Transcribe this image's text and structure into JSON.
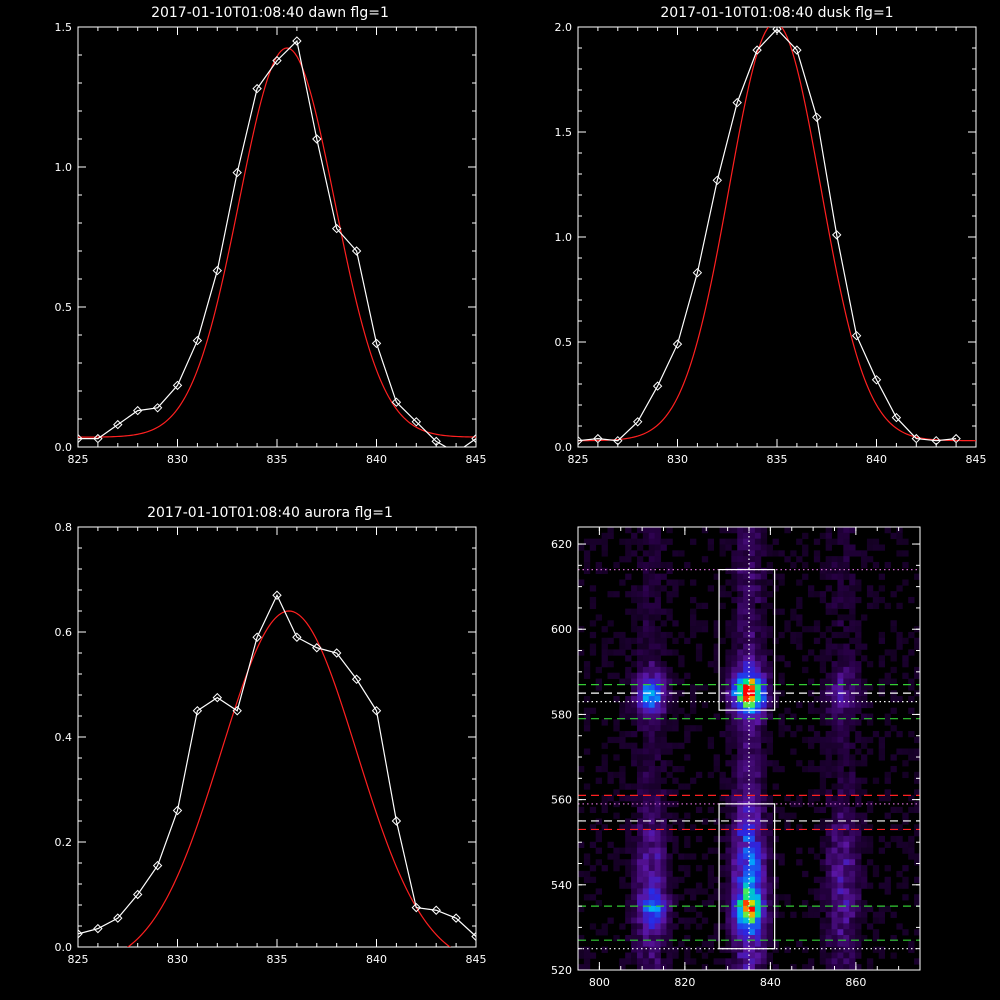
{
  "colors": {
    "background": "#000000",
    "axes": "#ffffff",
    "data_line": "#ffffff",
    "fit_line": "#ff2020",
    "guide_green": "#33cc33",
    "guide_red": "#ff2020",
    "guide_white": "#ffffff",
    "guide_magenta": "#cc66cc"
  },
  "chart_data": [
    {
      "type": "line",
      "title": "2017-01-10T01:08:40 dawn flg=1",
      "xlabel": "",
      "ylabel": "",
      "xlim": [
        825,
        845
      ],
      "ylim": [
        0,
        1.5
      ],
      "xticks": [
        "825",
        "830",
        "835",
        "840",
        "845"
      ],
      "yticks": [
        "0.0",
        "0.5",
        "1.0",
        "1.5"
      ],
      "series": [
        {
          "role": "data",
          "marker": "diamond",
          "x": [
            825,
            826,
            827,
            828,
            829,
            830,
            831,
            832,
            833,
            834,
            835,
            836,
            837,
            838,
            839,
            840,
            841,
            842,
            843,
            844,
            845
          ],
          "y": [
            0.03,
            0.03,
            0.08,
            0.13,
            0.14,
            0.22,
            0.38,
            0.63,
            0.98,
            1.28,
            1.38,
            1.45,
            1.1,
            0.78,
            0.7,
            0.37,
            0.16,
            0.09,
            0.02,
            -0.02,
            0.03
          ]
        },
        {
          "role": "fit",
          "fit": {
            "type": "gaussian",
            "amp": 1.39,
            "center": 835.5,
            "sigma": 2.4,
            "offset": 0.035
          }
        }
      ]
    },
    {
      "type": "line",
      "title": "2017-01-10T01:08:40 dusk flg=1",
      "xlabel": "",
      "ylabel": "",
      "xlim": [
        825,
        845
      ],
      "ylim": [
        0,
        2.0
      ],
      "xticks": [
        "825",
        "830",
        "835",
        "840",
        "845"
      ],
      "yticks": [
        "0.0",
        "0.5",
        "1.0",
        "1.5",
        "2.0"
      ],
      "series": [
        {
          "role": "data",
          "marker": "diamond",
          "x": [
            825,
            826,
            827,
            828,
            829,
            830,
            831,
            832,
            833,
            834,
            835,
            836,
            837,
            838,
            839,
            840,
            841,
            842,
            843,
            844
          ],
          "y": [
            0.03,
            0.04,
            0.03,
            0.12,
            0.29,
            0.49,
            0.83,
            1.27,
            1.64,
            1.89,
            1.99,
            1.89,
            1.57,
            1.01,
            0.53,
            0.32,
            0.14,
            0.04,
            0.03,
            0.04
          ]
        },
        {
          "role": "fit",
          "fit": {
            "type": "gaussian",
            "amp": 1.99,
            "center": 834.9,
            "sigma": 2.3,
            "offset": 0.03
          }
        }
      ]
    },
    {
      "type": "line",
      "title": "2017-01-10T01:08:40 aurora flg=1",
      "xlabel": "",
      "ylabel": "",
      "xlim": [
        825,
        845
      ],
      "ylim": [
        0,
        0.8
      ],
      "xticks": [
        "825",
        "830",
        "835",
        "840",
        "845"
      ],
      "yticks": [
        "0.0",
        "0.2",
        "0.4",
        "0.6",
        "0.8"
      ],
      "series": [
        {
          "role": "data",
          "marker": "diamond",
          "x": [
            825,
            826,
            827,
            828,
            829,
            830,
            831,
            832,
            833,
            834,
            835,
            836,
            837,
            838,
            839,
            840,
            841,
            842,
            843,
            844,
            845
          ],
          "y": [
            0.025,
            0.035,
            0.055,
            0.1,
            0.155,
            0.26,
            0.45,
            0.475,
            0.45,
            0.59,
            0.67,
            0.59,
            0.57,
            0.56,
            0.51,
            0.45,
            0.24,
            0.075,
            0.07,
            0.055,
            0.02
          ]
        },
        {
          "role": "fit",
          "fit": {
            "type": "gaussian",
            "amp": 0.68,
            "center": 835.6,
            "sigma": 3.4,
            "offset": -0.04
          }
        }
      ]
    },
    {
      "type": "heatmap",
      "title": "",
      "xlabel": "",
      "ylabel": "",
      "xlim": [
        795,
        875
      ],
      "ylim": [
        520,
        624
      ],
      "xticks": [
        "800",
        "820",
        "840",
        "860"
      ],
      "yticks": [
        "520",
        "540",
        "560",
        "580",
        "600",
        "620"
      ],
      "colormap": "rainbow",
      "emission_columns_x": [
        812,
        835,
        857
      ],
      "bright_spots": [
        {
          "x": 835,
          "y": 585,
          "level": 1.0
        },
        {
          "x": 835,
          "y": 534,
          "level": 0.85
        },
        {
          "x": 812,
          "y": 584,
          "level": 0.5
        },
        {
          "x": 813,
          "y": 534,
          "level": 0.5
        }
      ],
      "boxes": [
        {
          "x0": 828,
          "x1": 841,
          "y0": 581,
          "y1": 614
        },
        {
          "x0": 828,
          "x1": 841,
          "y0": 525,
          "y1": 559
        }
      ],
      "hlines": [
        {
          "y": 614,
          "style": "dotted",
          "color": "magenta"
        },
        {
          "y": 587,
          "style": "dashed",
          "color": "green"
        },
        {
          "y": 585,
          "style": "dashed",
          "color": "white"
        },
        {
          "y": 583,
          "style": "dotted",
          "color": "white"
        },
        {
          "y": 579,
          "style": "dashed",
          "color": "green"
        },
        {
          "y": 561,
          "style": "dashed",
          "color": "red"
        },
        {
          "y": 559,
          "style": "dotted",
          "color": "magenta"
        },
        {
          "y": 555,
          "style": "dashed",
          "color": "white"
        },
        {
          "y": 553,
          "style": "dashed",
          "color": "red"
        },
        {
          "y": 535,
          "style": "dashed",
          "color": "green"
        },
        {
          "y": 527,
          "style": "dashed",
          "color": "green"
        },
        {
          "y": 525,
          "style": "dotted",
          "color": "white"
        }
      ],
      "vlines": [
        {
          "x": 835,
          "style": "dotted",
          "color": "white"
        }
      ]
    }
  ]
}
